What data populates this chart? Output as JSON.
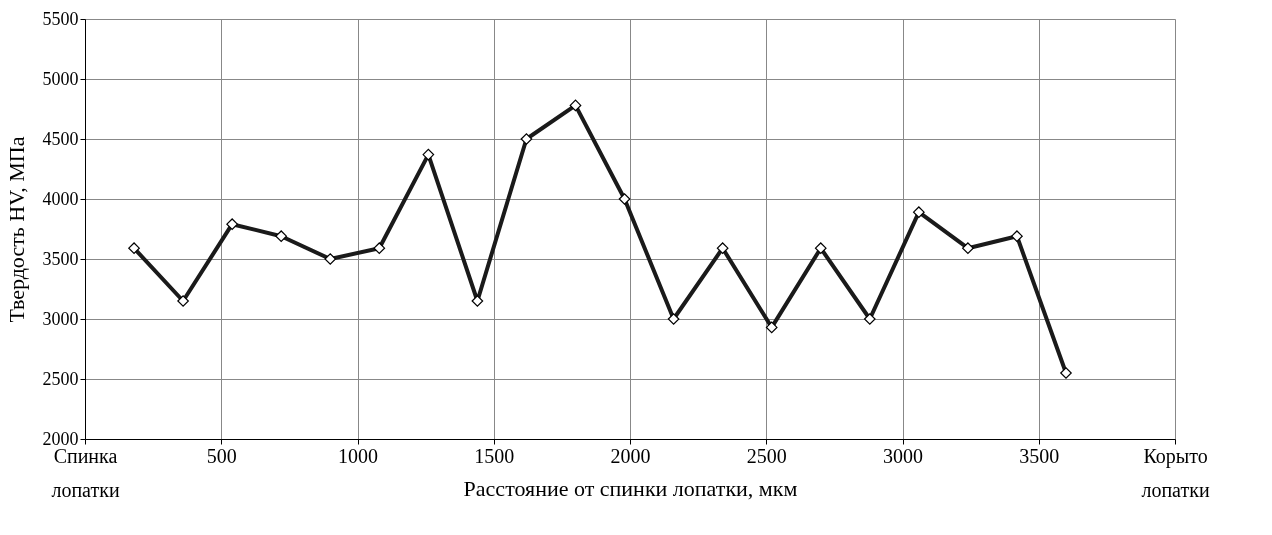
{
  "chart_data": {
    "type": "line",
    "xlabel": "Расстояние от спинки лопатки, мкм",
    "ylabel": "Твердость HV, МПа",
    "x": [
      180,
      360,
      540,
      720,
      900,
      1080,
      1260,
      1440,
      1620,
      1800,
      1980,
      2160,
      2340,
      2520,
      2700,
      2880,
      3060,
      3240,
      3420,
      3600
    ],
    "series": [
      {
        "color": "#1a1a1a",
        "values": [
          3590,
          3150,
          3790,
          3690,
          3500,
          3590,
          4370,
          3150,
          4500,
          4780,
          4000,
          3000,
          3590,
          2930,
          3590,
          3000,
          3890,
          3590,
          3690,
          2550
        ]
      }
    ],
    "xlim": [
      0,
      4000
    ],
    "xticks": [
      {
        "value": 0,
        "label": "Спинка лопатки"
      },
      500,
      1000,
      1500,
      2000,
      2500,
      3000,
      3500,
      {
        "value": 4000,
        "label": "Корыто лопатки"
      }
    ],
    "ylim": [
      2000,
      5500
    ],
    "yticks": [
      2000,
      2500,
      3000,
      3500,
      4000,
      4500,
      5000,
      5500
    ],
    "grid": true,
    "marker": "diamond",
    "line_style": "solid"
  }
}
